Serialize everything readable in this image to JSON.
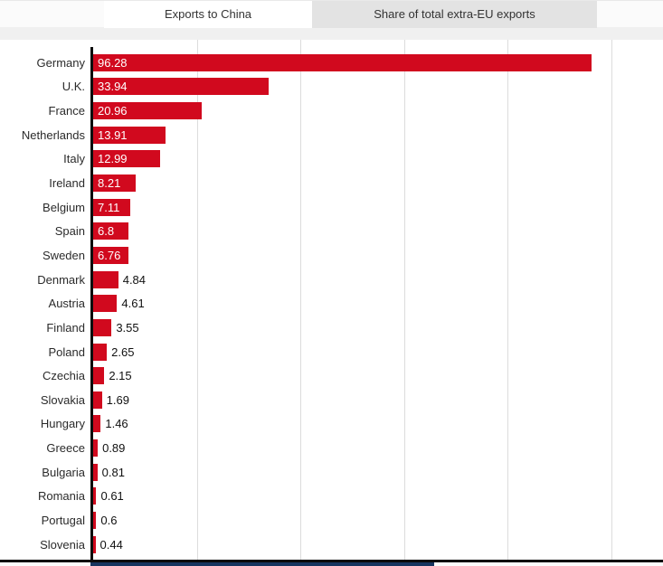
{
  "tabs": [
    {
      "label": "Exports to China",
      "active": true
    },
    {
      "label": "Share of total extra-EU exports",
      "active": false
    }
  ],
  "chart_data": {
    "type": "bar",
    "orientation": "horizontal",
    "title": "",
    "xlabel": "",
    "ylabel": "",
    "categories": [
      "Germany",
      "U.K.",
      "France",
      "Netherlands",
      "Italy",
      "Ireland",
      "Belgium",
      "Spain",
      "Sweden",
      "Denmark",
      "Austria",
      "Finland",
      "Poland",
      "Czechia",
      "Slovakia",
      "Hungary",
      "Greece",
      "Bulgaria",
      "Romania",
      "Portugal",
      "Slovenia"
    ],
    "values": [
      96.28,
      33.94,
      20.96,
      13.91,
      12.99,
      8.21,
      7.11,
      6.8,
      6.76,
      4.84,
      4.61,
      3.55,
      2.65,
      2.15,
      1.69,
      1.46,
      0.89,
      0.81,
      0.61,
      0.6,
      0.44
    ],
    "value_labels": [
      "96.28",
      "33.94",
      "20.96",
      "13.91",
      "12.99",
      "8.21",
      "7.11",
      "6.8",
      "6.76",
      "4.84",
      "4.61",
      "3.55",
      "2.65",
      "2.15",
      "1.69",
      "1.46",
      "0.89",
      "0.81",
      "0.61",
      "0.6",
      "0.44"
    ],
    "xlim": [
      0,
      110
    ],
    "grid_interval": 20,
    "grid": true,
    "legend": "none",
    "inside_label_threshold": 6
  },
  "colors": {
    "bar": "#d1091e",
    "inactive_tab_bg": "#e3e3e3",
    "axis": "#0d0d0d",
    "gridline": "#dcdcdc",
    "bottom_strip": "#16355f"
  }
}
